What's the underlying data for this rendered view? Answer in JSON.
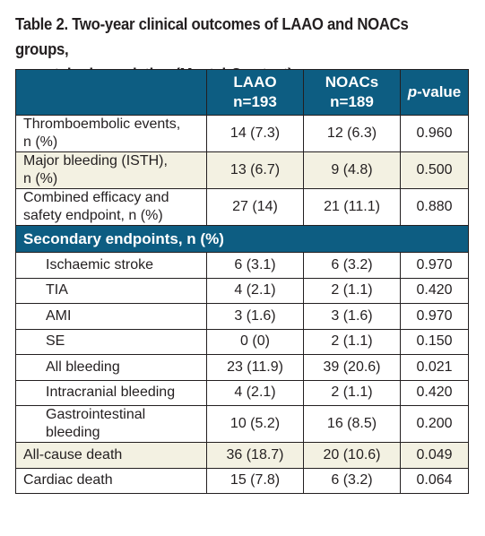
{
  "caption": {
    "line1": "Table 2. Two-year clinical outcomes of LAAO and NOACs groups,",
    "line2": "unmatched population (Mantel-Cox test)."
  },
  "header": {
    "blank": "",
    "laao_name": "LAAO",
    "laao_n": "n=193",
    "noacs_name": "NOACs",
    "noacs_n": "n=189",
    "p_italic": "p",
    "p_rest": "-value"
  },
  "primary_rows": [
    {
      "line1": "Thromboembolic events,",
      "line2": "n (%)",
      "laao": "14 (7.3)",
      "noacs": "12 (6.3)",
      "p": "0.960"
    },
    {
      "line1": "Major bleeding (ISTH),",
      "line2": "n (%)",
      "laao": "13 (6.7)",
      "noacs": "9 (4.8)",
      "p": "0.500"
    },
    {
      "line1": "Combined efficacy and",
      "line2": "safety endpoint, n (%)",
      "laao": "27 (14)",
      "noacs": "21 (11.1)",
      "p": "0.880"
    }
  ],
  "section_label": "Secondary endpoints, n (%)",
  "secondary_rows": [
    {
      "label": "Ischaemic stroke",
      "laao": "6 (3.1)",
      "noacs": "6 (3.2)",
      "p": "0.970"
    },
    {
      "label": "TIA",
      "laao": "4 (2.1)",
      "noacs": "2 (1.1)",
      "p": "0.420"
    },
    {
      "label": "AMI",
      "laao": "3 (1.6)",
      "noacs": "3 (1.6)",
      "p": "0.970"
    },
    {
      "label": "SE",
      "laao": "0 (0)",
      "noacs": "2 (1.1)",
      "p": "0.150"
    },
    {
      "label": "All bleeding",
      "laao": "23 (11.9)",
      "noacs": "39 (20.6)",
      "p": "0.021"
    },
    {
      "label": "Intracranial bleeding",
      "laao": "4 (2.1)",
      "noacs": "2 (1.1)",
      "p": "0.420"
    }
  ],
  "gi_row": {
    "line1": "Gastrointestinal",
    "line2": "bleeding",
    "laao": "10 (5.2)",
    "noacs": "16 (8.5)",
    "p": "0.200"
  },
  "bottom_rows": [
    {
      "label": "All-cause death",
      "laao": "36 (18.7)",
      "noacs": "20 (10.6)",
      "p": "0.049"
    },
    {
      "label": "Cardiac death",
      "laao": "15 (7.8)",
      "noacs": "6 (3.2)",
      "p": "0.064"
    }
  ],
  "colors": {
    "header_bg": "#0d5d82",
    "shade_bg": "#f3f1e2"
  }
}
